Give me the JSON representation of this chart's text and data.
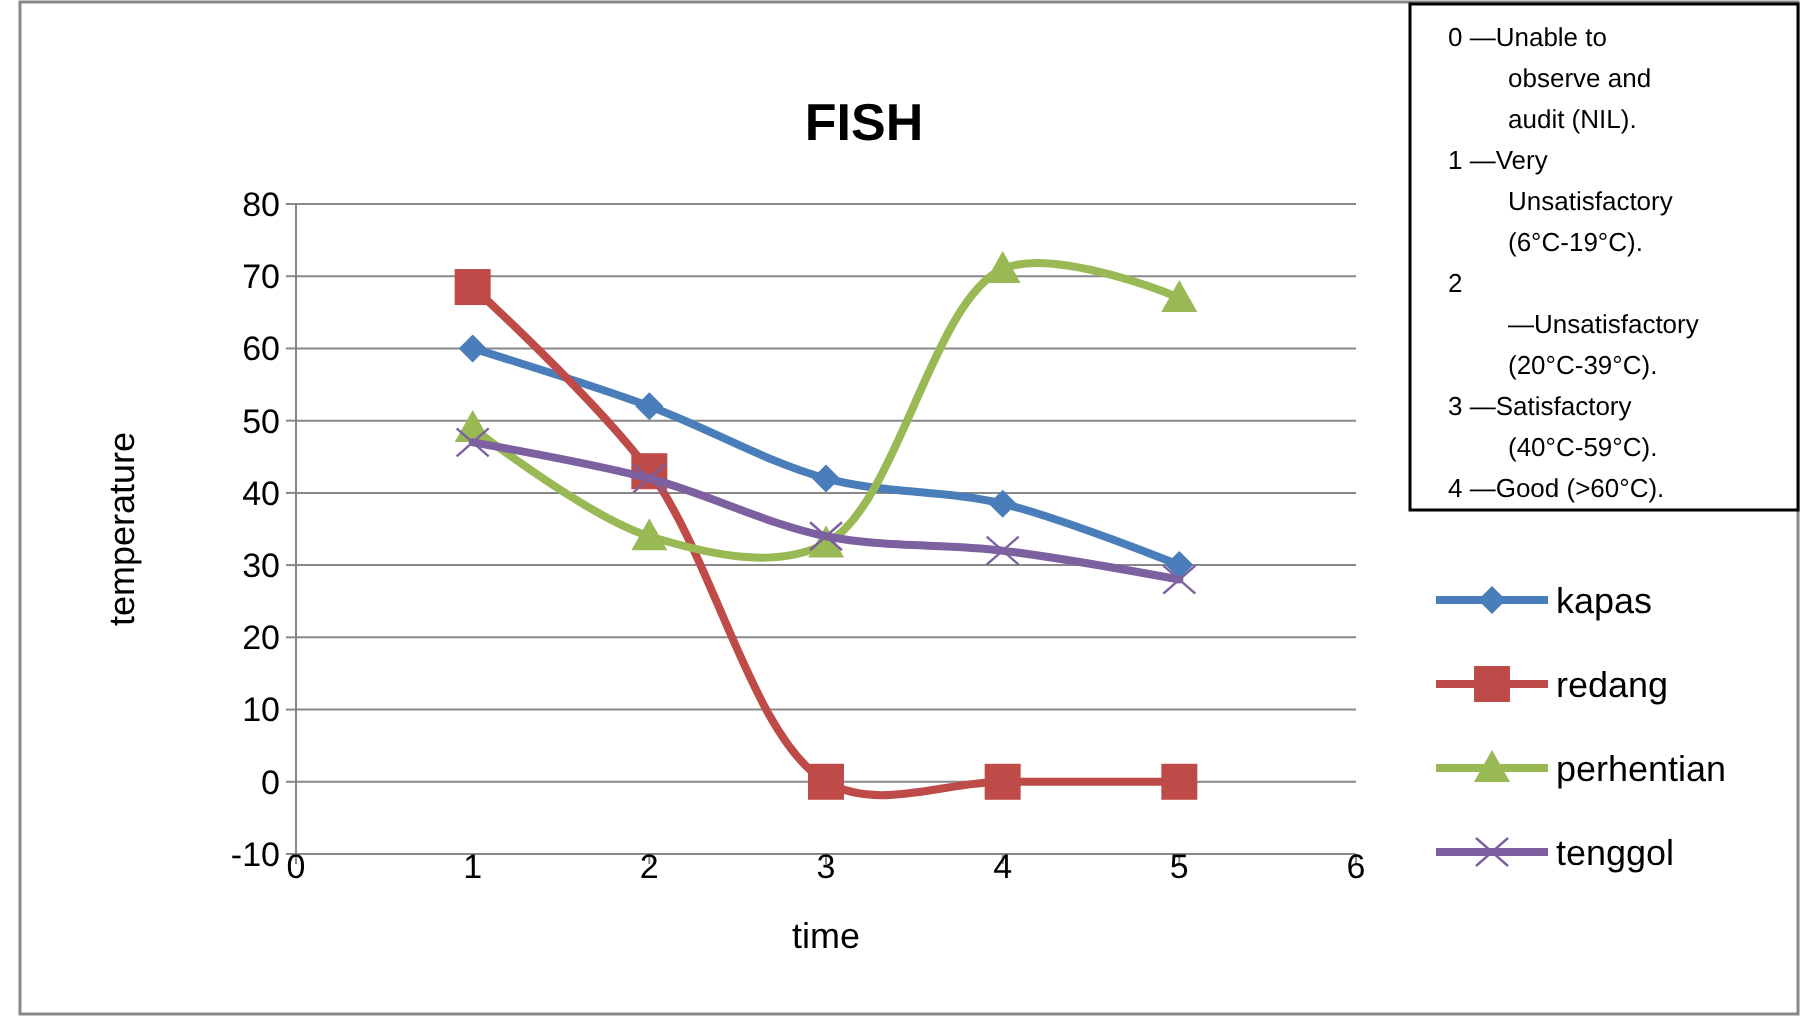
{
  "chart_data": {
    "type": "line",
    "title": "FISH",
    "xlabel": "time",
    "ylabel": "temperature",
    "x": [
      1,
      2,
      3,
      4,
      5
    ],
    "series": [
      {
        "name": "kapas",
        "color": "#4a7ebb",
        "marker": "diamond",
        "values": [
          60,
          52,
          42,
          38.5,
          30
        ]
      },
      {
        "name": "redang",
        "color": "#be4b48",
        "marker": "square",
        "values": [
          68.5,
          43,
          0,
          0,
          0
        ]
      },
      {
        "name": "perhentian",
        "color": "#98b954",
        "marker": "triangle",
        "values": [
          49,
          34,
          33,
          71,
          67
        ]
      },
      {
        "name": "tenggol",
        "color": "#7d60a0",
        "marker": "cross",
        "values": [
          47,
          42,
          34,
          32,
          28
        ]
      }
    ],
    "xlim": [
      0,
      6
    ],
    "xticks": [
      0,
      1,
      2,
      3,
      4,
      5,
      6
    ],
    "ylim": [
      -10,
      80
    ],
    "yticks": [
      -10,
      0,
      10,
      20,
      30,
      40,
      50,
      60,
      70,
      80
    ],
    "grid": "y",
    "legend": "right",
    "annotations": [
      "0 —Unable to observe and audit (NIL).",
      "1 —Very Unsatisfactory (6°C-19°C).",
      "2 —Unsatisfactory (20°C-39°C).",
      "3 —Satisfactory (40°C-59°C).",
      "4 —Good (>60°C)."
    ]
  }
}
